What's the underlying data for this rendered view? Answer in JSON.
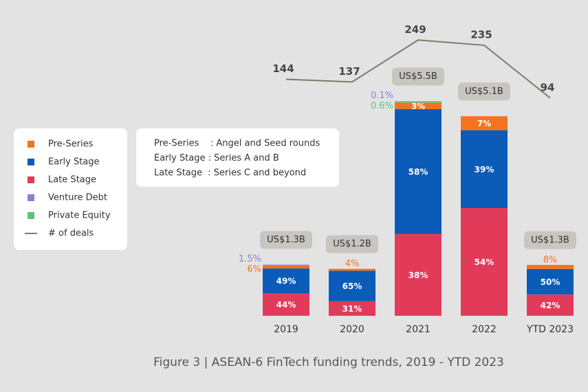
{
  "chart_data": {
    "type": "bar",
    "stacked": true,
    "caption": "Figure 3 | ASEAN-6 FinTech funding trends, 2019 - YTD 2023",
    "categories": [
      "2019",
      "2020",
      "2021",
      "2022",
      "YTD 2023"
    ],
    "totals": {
      "values": [
        1.3,
        1.2,
        5.5,
        5.1,
        1.3
      ],
      "value_labels": [
        "US$1.3B",
        "US$1.2B",
        "US$5.5B",
        "US$5.1B",
        "US$1.3B"
      ]
    },
    "series": [
      {
        "name": "Pre-Series",
        "color": "#f4731f",
        "values": [
          6,
          4,
          3,
          7,
          8
        ],
        "value_labels": [
          "6%",
          "4%",
          "3%",
          "7%",
          "8%"
        ]
      },
      {
        "name": "Early Stage",
        "color": "#0a5cb8",
        "values": [
          49,
          65,
          58,
          39,
          50
        ],
        "value_labels": [
          "49%",
          "65%",
          "58%",
          "39%",
          "50%"
        ]
      },
      {
        "name": "Late Stage",
        "color": "#e23b5a",
        "values": [
          44,
          31,
          38,
          54,
          42
        ],
        "value_labels": [
          "44%",
          "31%",
          "38%",
          "54%",
          "42%"
        ]
      },
      {
        "name": "Venture Debt",
        "color": "#8c7fd6",
        "values": [
          1.5,
          null,
          0.1,
          null,
          null
        ],
        "value_labels": [
          "1.5%",
          null,
          "0.1%",
          null,
          null
        ]
      },
      {
        "name": "Private Equity",
        "color": "#5cc07f",
        "values": [
          null,
          null,
          0.6,
          null,
          null
        ],
        "value_labels": [
          null,
          null,
          "0.6%",
          null,
          null
        ]
      },
      {
        "name": "# of deals",
        "type": "line",
        "color": "#7b7b68",
        "values": [
          144,
          137,
          249,
          235,
          94
        ]
      }
    ],
    "definitions": [
      "Pre-Series    : Angel and Seed rounds",
      "Early Stage : Series A and B",
      "Late Stage  : Series C and beyond"
    ]
  }
}
